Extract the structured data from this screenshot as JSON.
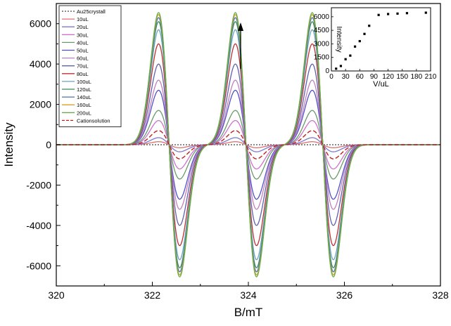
{
  "chart_data": [
    {
      "type": "line",
      "xlabel": "B/mT",
      "ylabel": "Intensity",
      "xlim": [
        320,
        328
      ],
      "ylim": [
        -7000,
        7000
      ],
      "x_ticks": [
        "320",
        "322",
        "324",
        "326",
        "328"
      ],
      "y_ticks": [
        "-6000",
        "-4000",
        "-2000",
        "0",
        "2000",
        "4000",
        "6000"
      ],
      "legend_position": "top-left",
      "line_centers_mT": [
        322.35,
        323.95,
        325.55
      ],
      "peak_offset_mT": 0.22,
      "series": [
        {
          "name": "Au25crystall",
          "amplitude": 0,
          "color": "#444444",
          "style": "dotted"
        },
        {
          "name": "10uL",
          "amplitude": 150,
          "color": "#e07070",
          "style": "solid"
        },
        {
          "name": "20uL",
          "amplitude": 350,
          "color": "#7a7ad0",
          "style": "solid"
        },
        {
          "name": "30uL",
          "amplitude": 1200,
          "color": "#d070d0",
          "style": "solid"
        },
        {
          "name": "40uL",
          "amplitude": 1700,
          "color": "#6a9a6a",
          "style": "solid"
        },
        {
          "name": "50uL",
          "amplitude": 2700,
          "color": "#5050c8",
          "style": "solid"
        },
        {
          "name": "60uL",
          "amplitude": 3200,
          "color": "#c080c0",
          "style": "solid"
        },
        {
          "name": "70uL",
          "amplitude": 4000,
          "color": "#6060b0",
          "style": "solid"
        },
        {
          "name": "80uL",
          "amplitude": 5000,
          "color": "#c03030",
          "style": "solid"
        },
        {
          "name": "100uL",
          "amplitude": 5700,
          "color": "#6aa0c8",
          "style": "solid"
        },
        {
          "name": "120uL",
          "amplitude": 6100,
          "color": "#3a8a5a",
          "style": "solid"
        },
        {
          "name": "140uL",
          "amplitude": 6300,
          "color": "#4a70b0",
          "style": "solid"
        },
        {
          "name": "160uL",
          "amplitude": 6450,
          "color": "#d8a030",
          "style": "solid"
        },
        {
          "name": "200uL",
          "amplitude": 6550,
          "color": "#6ab04a",
          "style": "solid"
        },
        {
          "name": "Cationsolution",
          "amplitude": 700,
          "color": "#c02020",
          "style": "dashed"
        }
      ]
    },
    {
      "type": "scatter",
      "xlabel": "V/uL",
      "ylabel": "Intensity",
      "xlim": [
        0,
        210
      ],
      "ylim": [
        0,
        7000
      ],
      "x_ticks": [
        "0",
        "30",
        "60",
        "90",
        "120",
        "150",
        "180",
        "210"
      ],
      "y_ticks": [
        "0",
        "1500",
        "3000",
        "4500",
        "6000"
      ],
      "x": [
        10,
        20,
        30,
        40,
        50,
        60,
        70,
        80,
        100,
        120,
        140,
        160,
        200
      ],
      "y": [
        250,
        550,
        1300,
        1700,
        2700,
        3300,
        4100,
        5000,
        6200,
        6300,
        6350,
        6400,
        6450
      ]
    }
  ]
}
